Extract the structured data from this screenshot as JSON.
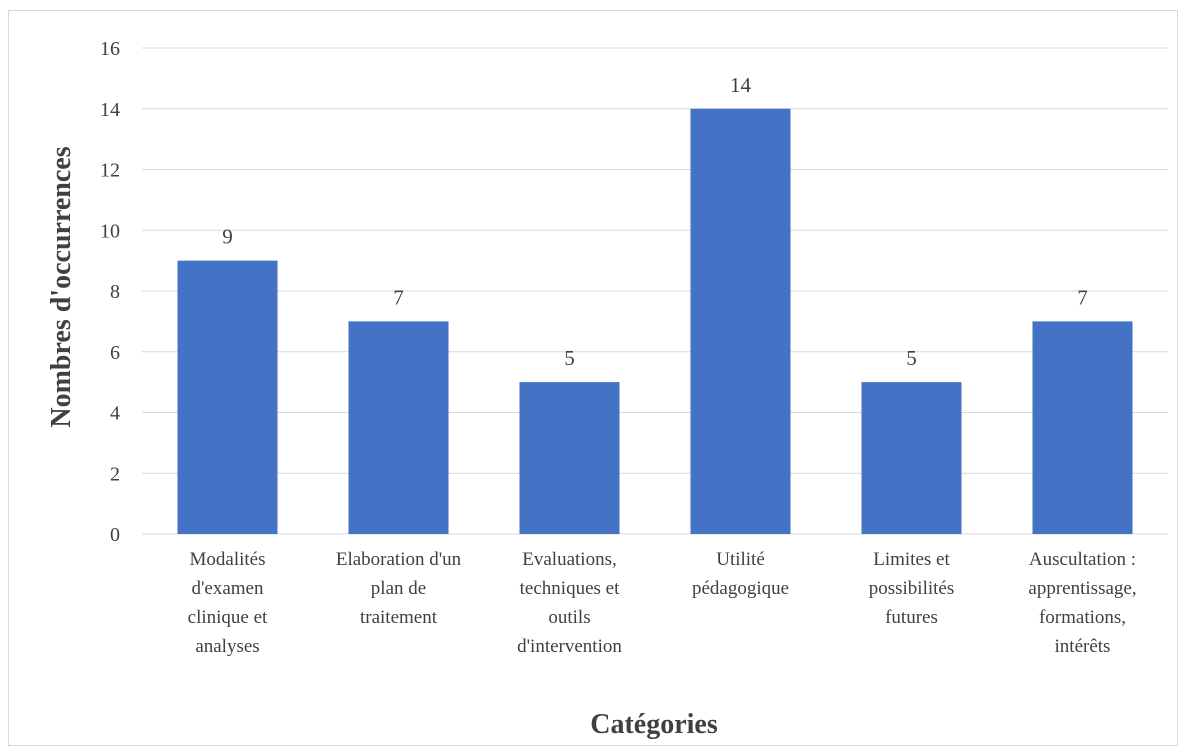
{
  "chart_data": {
    "type": "bar",
    "categories": [
      [
        "Modalités",
        "d'examen",
        "clinique et",
        "analyses"
      ],
      [
        "Elaboration d'un",
        "plan de",
        "traitement"
      ],
      [
        "Evaluations,",
        "techniques et",
        "outils",
        "d'intervention"
      ],
      [
        "Utilité",
        "pédagogique"
      ],
      [
        "Limites et",
        "possibilités",
        "futures"
      ],
      [
        "Auscultation :",
        "apprentissage,",
        "formations,",
        "intérêts"
      ]
    ],
    "values": [
      9,
      7,
      5,
      14,
      5,
      7
    ],
    "data_labels": [
      "9",
      "7",
      "5",
      "14",
      "5",
      "7"
    ],
    "title": "",
    "xlabel": "Catégories",
    "ylabel": "Nombres d'occurrences",
    "ylim": [
      0,
      16
    ],
    "yticks": [
      "0",
      "2",
      "4",
      "6",
      "8",
      "10",
      "12",
      "14",
      "16"
    ],
    "grid": true,
    "legend": "none",
    "bar_color": "#4472C4",
    "grid_color": "#d9d9d9"
  }
}
